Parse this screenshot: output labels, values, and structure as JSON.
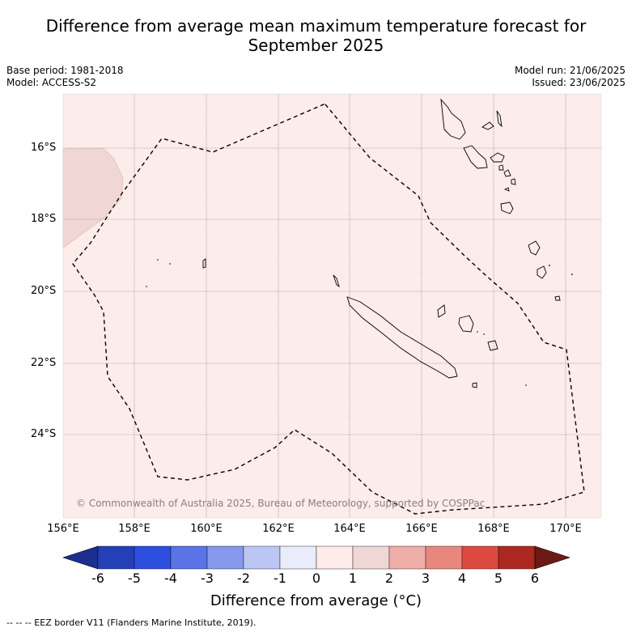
{
  "title_line1": "Difference from average mean maximum temperature forecast for",
  "title_line2": "September 2025",
  "base_period": "Base period: 1981-2018",
  "model": "Model: ACCESS-S2",
  "model_run": "Model run: 21/06/2025",
  "issued": "Issued: 23/06/2025",
  "lat_labels": [
    "16°S",
    "18°S",
    "20°S",
    "22°S",
    "24°S"
  ],
  "lon_labels": [
    "156°E",
    "158°E",
    "160°E",
    "162°E",
    "164°E",
    "166°E",
    "168°E",
    "170°E"
  ],
  "copyright": "© Commonwealth of Australia 2025, Bureau of Meteorology, supported by COSPPac",
  "colorbar": {
    "ticks": [
      "-6",
      "-5",
      "-4",
      "-3",
      "-2",
      "-1",
      "0",
      "1",
      "2",
      "3",
      "4",
      "5",
      "6"
    ],
    "colors": [
      "#1c2e8f",
      "#2440b8",
      "#2d4fe0",
      "#5a73e6",
      "#8699ec",
      "#bcc6f5",
      "#e8ecfb",
      "#fdece9",
      "#f0d6d4",
      "#efaea8",
      "#e8877e",
      "#dc4a3f",
      "#ac2820",
      "#6b1a15"
    ],
    "label": "Difference from average (°C)"
  },
  "map": {
    "background_color": "#fcecea",
    "anomaly_patch_color": "#f0d6d4"
  },
  "footer": "--  --  -- EEZ border V11 (Flanders Marine Institute, 2019)."
}
